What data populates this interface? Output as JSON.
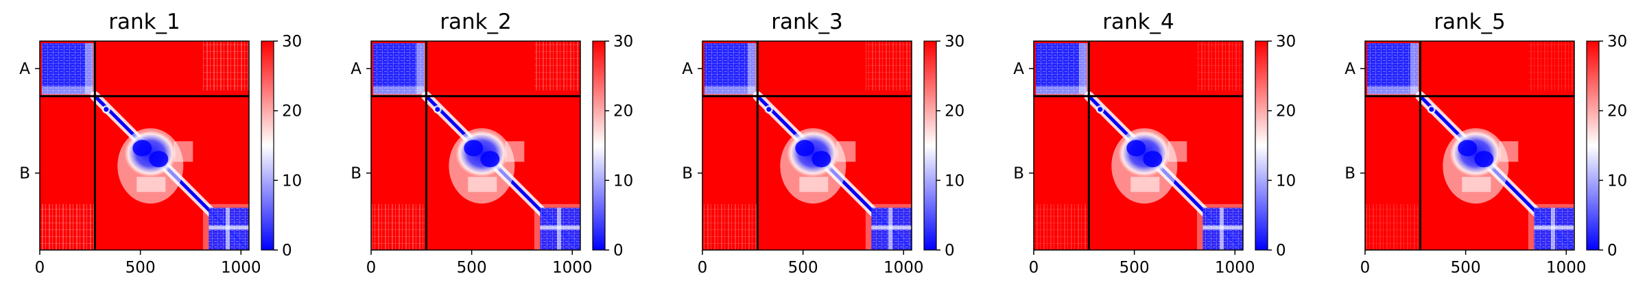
{
  "chart_data": {
    "type": "heatmap",
    "colorscale": {
      "low": "#0000ff",
      "mid": "#ffffff",
      "high": "#ff0000"
    },
    "colorbar": {
      "min": 0,
      "max": 30,
      "ticks": [
        0,
        10,
        20,
        30
      ]
    },
    "matrix_size": 1040,
    "chain_boundary": 274,
    "x_ticks": [
      0,
      500,
      1000
    ],
    "y_tick_labels": [
      {
        "label": "A",
        "position": 137
      },
      {
        "label": "B",
        "position": 657
      }
    ],
    "panels": [
      {
        "title": "rank_1"
      },
      {
        "title": "rank_2"
      },
      {
        "title": "rank_3"
      },
      {
        "title": "rank_4"
      },
      {
        "title": "rank_5"
      }
    ]
  }
}
